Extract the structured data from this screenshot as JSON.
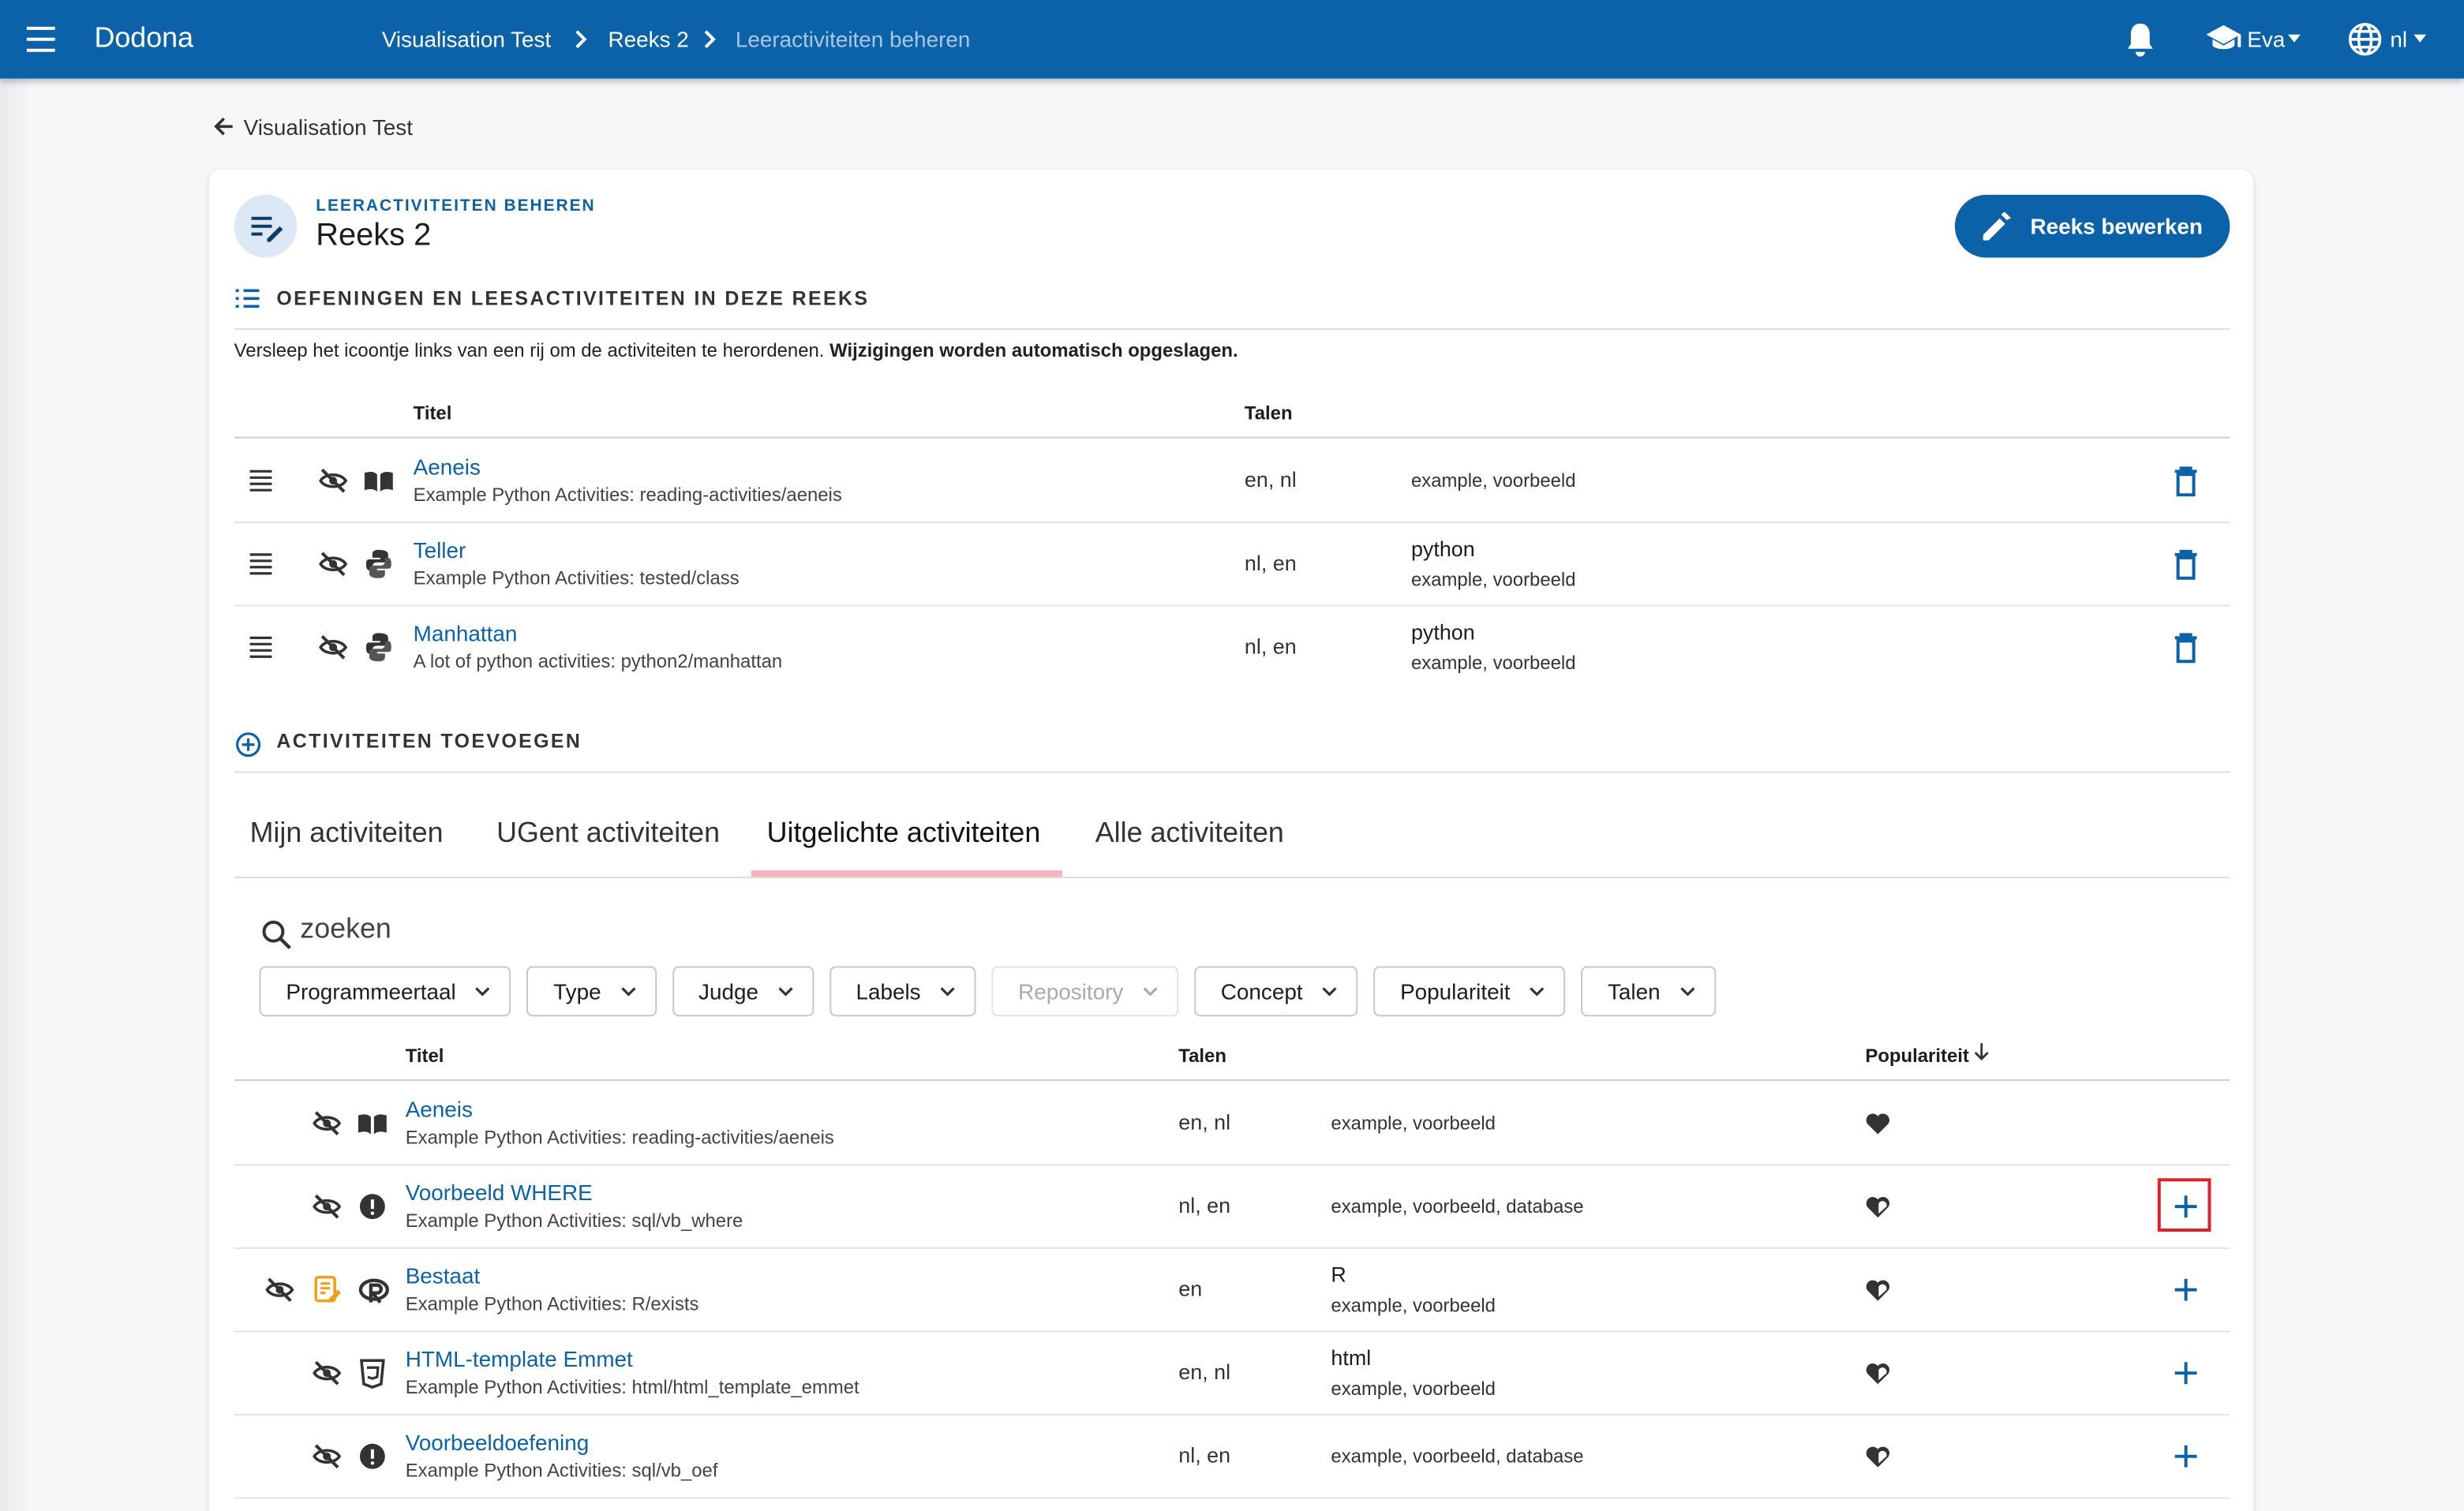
{
  "navbar": {
    "brand": "Dodona",
    "breadcrumbs": [
      "Visualisation Test",
      "Reeks 2",
      "Leeractiviteiten beheren"
    ],
    "user": "Eva",
    "language": "nl"
  },
  "back_link": "Visualisation Test",
  "card": {
    "overline": "LEERACTIVITEITEN BEHEREN",
    "title": "Reeks 2",
    "edit_button": "Reeks bewerken"
  },
  "series_section": {
    "heading": "OEFENINGEN EN LEESACTIVITEITEN IN DEZE REEKS",
    "help": "Versleep het icoontje links van een rij om de activiteiten te herordenen.",
    "help_bold": "Wijzigingen worden automatisch opgeslagen.",
    "columns": [
      "Titel",
      "Talen"
    ],
    "rows": [
      {
        "title": "Aeneis",
        "path": "Example Python Activities: reading-activities/aeneis",
        "languages": "en, nl",
        "labels": "example, voorbeeld",
        "icon": "book"
      },
      {
        "title": "Teller",
        "path": "Example Python Activities: tested/class",
        "languages": "nl, en",
        "programming_language": "python",
        "labels": "example, voorbeeld",
        "icon": "python"
      },
      {
        "title": "Manhattan",
        "path": "A lot of python activities: python2/manhattan",
        "languages": "nl, en",
        "programming_language": "python",
        "labels": "example, voorbeeld",
        "icon": "python"
      }
    ]
  },
  "add_section": {
    "heading": "ACTIVITEITEN TOEVOEGEN",
    "tabs": [
      "Mijn activiteiten",
      "UGent activiteiten",
      "Uitgelichte activiteiten",
      "Alle activiteiten"
    ],
    "active_tab": 2,
    "search_placeholder": "zoeken",
    "filters": [
      {
        "label": "Programmeertaal"
      },
      {
        "label": "Type"
      },
      {
        "label": "Judge"
      },
      {
        "label": "Labels"
      },
      {
        "label": "Repository",
        "disabled": true
      },
      {
        "label": "Concept"
      },
      {
        "label": "Populariteit"
      },
      {
        "label": "Talen"
      }
    ],
    "columns": [
      "Titel",
      "Talen",
      "Populariteit"
    ],
    "rows": [
      {
        "title": "Aeneis",
        "path": "Example Python Activities: reading-activities/aeneis",
        "languages": "en, nl",
        "labels": "example, voorbeeld",
        "icon": "book",
        "popularity": "full",
        "in_series": true
      },
      {
        "title": "Voorbeeld WHERE",
        "path": "Example Python Activities: sql/vb_where",
        "languages": "nl, en",
        "labels": "example, voorbeeld, database",
        "icon": "alert",
        "popularity": "half",
        "highlighted": true
      },
      {
        "title": "Bestaat",
        "path": "Example Python Activities: R/exists",
        "languages": "en",
        "programming_language": "R",
        "labels": "example, voorbeeld",
        "icon": "r",
        "popularity": "half",
        "editable": true
      },
      {
        "title": "HTML-template Emmet",
        "path": "Example Python Activities: html/html_template_emmet",
        "languages": "en, nl",
        "programming_language": "html",
        "labels": "example, voorbeeld",
        "icon": "html",
        "popularity": "half"
      },
      {
        "title": "Voorbeeldoefening",
        "path": "Example Python Activities: sql/vb_oef",
        "languages": "nl, en",
        "labels": "example, voorbeeld, database",
        "icon": "alert",
        "popularity": "half"
      }
    ]
  }
}
